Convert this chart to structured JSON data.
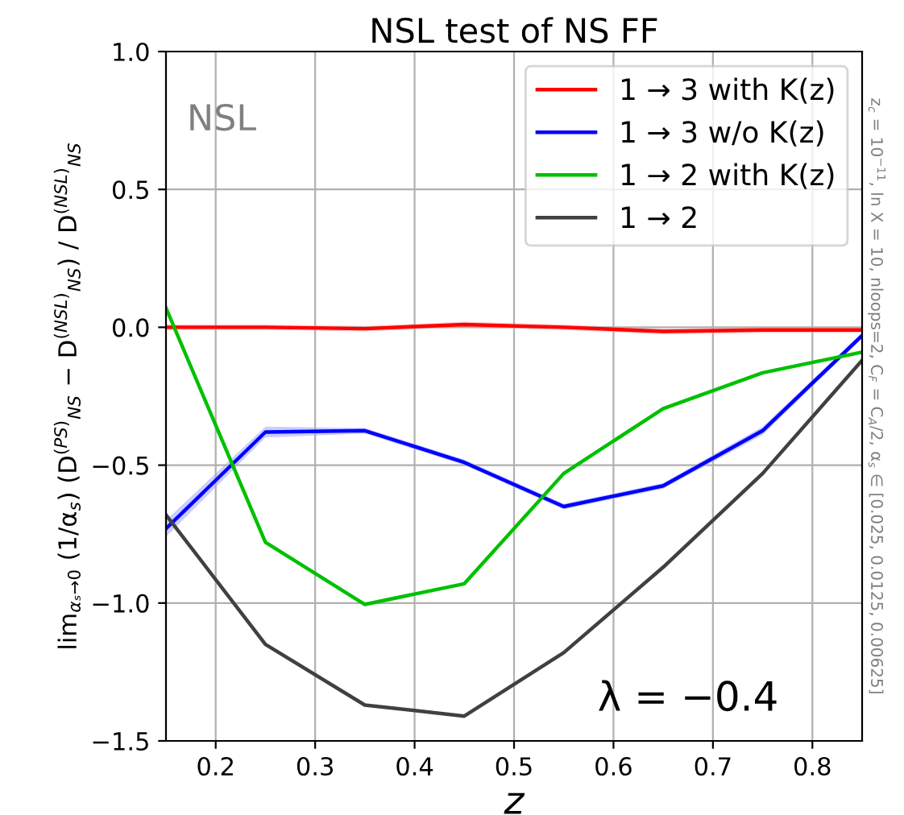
{
  "chart_data": {
    "type": "line",
    "title": "NSL test of NS FF",
    "xlabel": "z",
    "ylabel": "lim$_{αₛ→0}$ (1/α$_{s}$) (D$^{(PS)}$$_{NS}$ − D$^{(NSL)}$$_{NS}$) / D$^{(NSL)}$$_{NS}$",
    "x": [
      0.15,
      0.25,
      0.35,
      0.45,
      0.55,
      0.65,
      0.75,
      0.85
    ],
    "series": [
      {
        "name": "1 → 3 with K(z)",
        "color": "#ff0000",
        "values": [
          0.0,
          0.0,
          -0.005,
          0.01,
          0.0,
          -0.015,
          -0.01,
          -0.01
        ],
        "lower": [
          -0.01,
          -0.01,
          -0.015,
          0.0,
          -0.01,
          -0.025,
          -0.02,
          -0.02
        ],
        "upper": [
          0.01,
          0.01,
          0.005,
          0.02,
          0.01,
          -0.005,
          0.0,
          0.0
        ]
      },
      {
        "name": "1 → 3 w/o K(z)",
        "color": "#0000ff",
        "values": [
          -0.73,
          -0.38,
          -0.375,
          -0.49,
          -0.65,
          -0.575,
          -0.375,
          -0.03
        ],
        "lower": [
          -0.76,
          -0.4,
          -0.385,
          -0.5,
          -0.66,
          -0.585,
          -0.39,
          -0.04
        ],
        "upper": [
          -0.7,
          -0.36,
          -0.365,
          -0.48,
          -0.64,
          -0.565,
          -0.36,
          -0.02
        ]
      },
      {
        "name": "1 → 2 with K(z)",
        "color": "#00c000",
        "values": [
          0.07,
          -0.78,
          -1.005,
          -0.93,
          -0.53,
          -0.295,
          -0.165,
          -0.09
        ]
      },
      {
        "name": "1 → 2",
        "color": "#404040",
        "values": [
          -0.68,
          -1.15,
          -1.37,
          -1.41,
          -1.18,
          -0.87,
          -0.53,
          -0.12
        ]
      }
    ],
    "xlim": [
      0.15,
      0.85
    ],
    "ylim": [
      -1.5,
      1.0
    ],
    "xticks": [
      0.2,
      0.3,
      0.4,
      0.5,
      0.6,
      0.7,
      0.8
    ],
    "yticks": [
      {
        "value": -1.5,
        "label": "−1.5"
      },
      {
        "value": -1.0,
        "label": "−1.0"
      },
      {
        "value": -0.5,
        "label": "−0.5"
      },
      {
        "value": 0.0,
        "label": "0.0"
      },
      {
        "value": 0.5,
        "label": "0.5"
      },
      {
        "value": 1.0,
        "label": "1.0"
      }
    ],
    "grid": true,
    "legend": "top right",
    "marker": "none",
    "line_style": "solid",
    "annotations": [
      "NSL",
      "λ = −0.4",
      "z$_{c}$ = 10$^{−11}$, ln X = 10, nloops=2, C$_{F}$ = C$_{A}$/2, α$_{s}$ ∈ [0.025, 0.0125, 0.00625]"
    ]
  }
}
